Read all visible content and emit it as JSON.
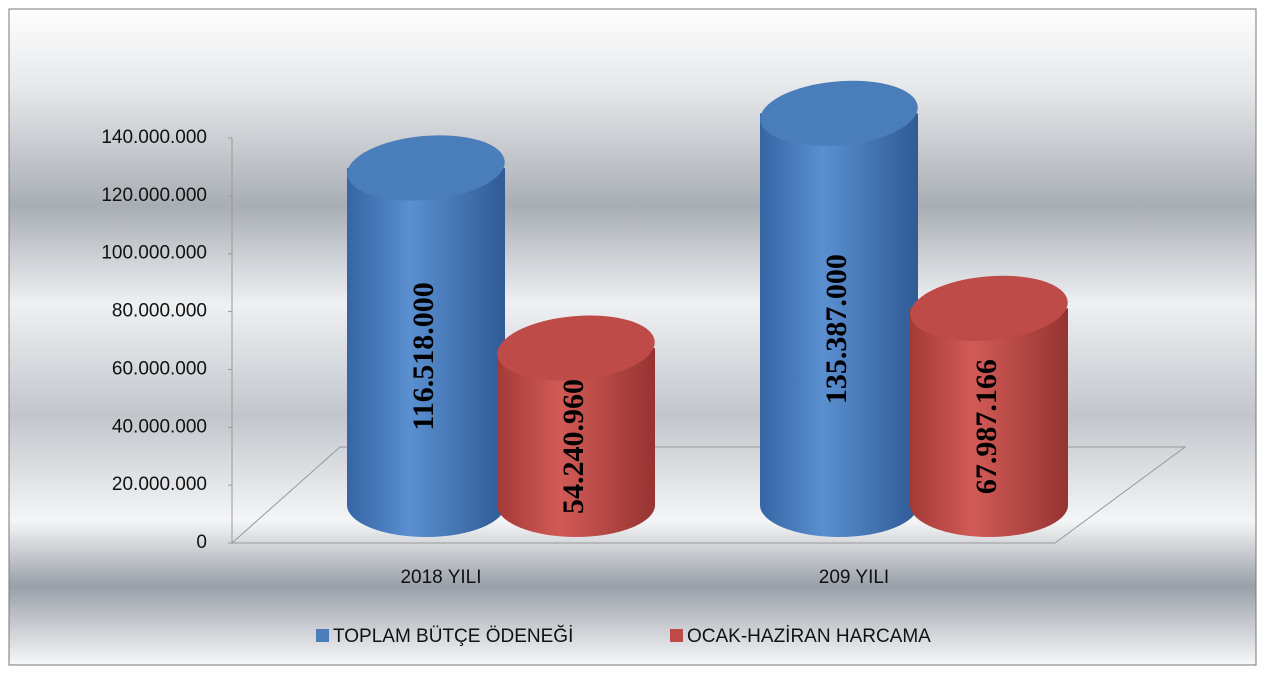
{
  "chart_data": {
    "type": "bar",
    "style": "3d-cylinder",
    "categories": [
      "2018 YILI",
      "209 YILI"
    ],
    "series": [
      {
        "name": "TOPLAM BÜTÇE ÖDENEĞİ",
        "color": "#4a7ebb",
        "values": [
          116518000,
          135387000
        ],
        "value_labels": [
          "116.518.000",
          "135.387.000"
        ]
      },
      {
        "name": "OCAK-HAZİRAN HARCAMA",
        "color": "#be4b48",
        "values": [
          54240960,
          67987166
        ],
        "value_labels": [
          "54.240.960",
          "67.987.166"
        ]
      }
    ],
    "ylim": [
      0,
      140000000
    ],
    "yticks": [
      0,
      {
        "value": 20000000,
        "label": "20.000.000"
      },
      {
        "value": 40000000,
        "label": "40.000.000"
      },
      {
        "value": 60000000,
        "label": "60.000.000"
      },
      {
        "value": 80000000,
        "label": "80.000.000"
      },
      {
        "value": 100000000,
        "label": "100.000.000"
      },
      {
        "value": 120000000,
        "label": "120.000.000"
      },
      {
        "value": 140000000,
        "label": "140.000.000"
      }
    ],
    "grid": false,
    "legend": "bottom"
  }
}
